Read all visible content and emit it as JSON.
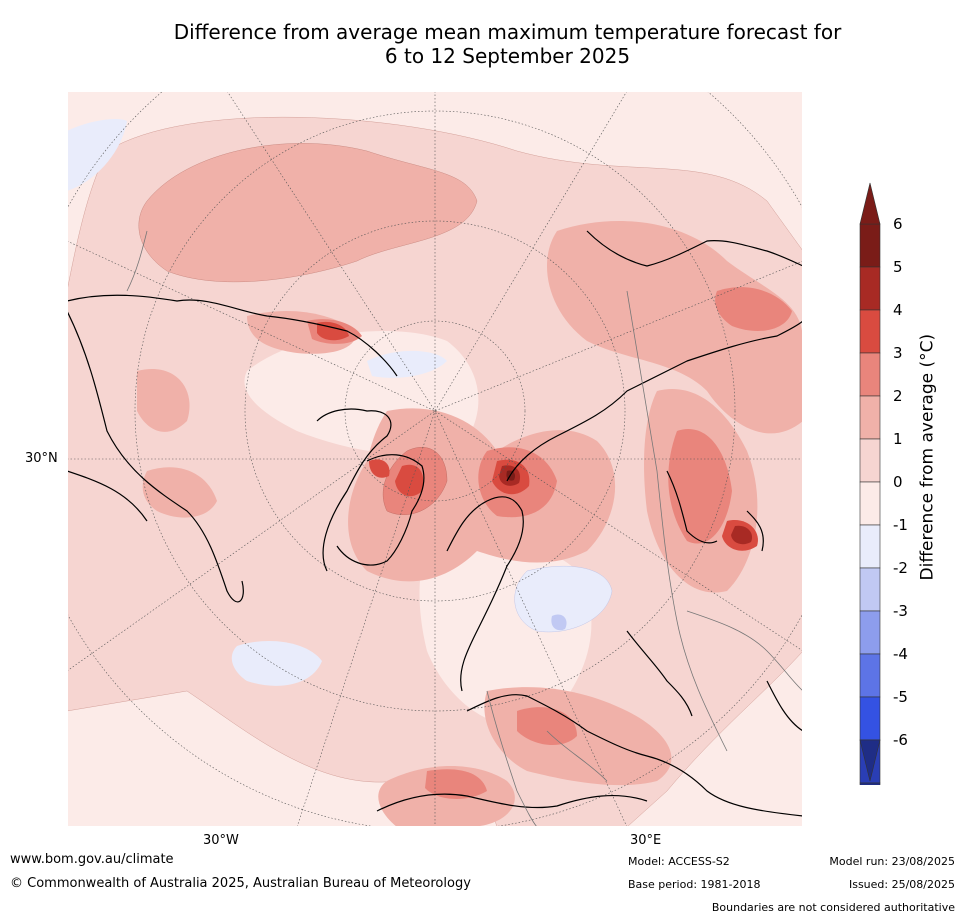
{
  "title_line1": "Difference from average mean maximum temperature forecast for",
  "title_line2": "6 to 12 September 2025",
  "axis_labels": {
    "lat": "30°N",
    "lon_west": "30°W",
    "lon_east": "30°E"
  },
  "colorbar": {
    "label": "Difference from average (°C)",
    "ticks": [
      "6",
      "5",
      "4",
      "3",
      "2",
      "1",
      "0",
      "-1",
      "-2",
      "-3",
      "-4",
      "-5",
      "-6"
    ],
    "colors_warm": [
      "#7a1c18",
      "#a82a24",
      "#d94b40",
      "#e9857c",
      "#f0b1a9",
      "#f6d5d1",
      "#fcebe8"
    ],
    "colors_cool": [
      "#e9ecfb",
      "#c1c9f3",
      "#8d9ded",
      "#5d74e6",
      "#3452e3",
      "#2a3eb5",
      "#1f2d86"
    ]
  },
  "footer": {
    "url": "www.bom.gov.au/climate",
    "copyright": "© Commonwealth of Australia 2025, Australian Bureau of Meteorology",
    "model": "Model: ACCESS-S2",
    "base_period": "Base period: 1981-2018",
    "model_run": "Model run: 23/08/2025",
    "issued": "Issued: 25/08/2025",
    "disclaimer": "Boundaries are not considered authoritative"
  }
}
